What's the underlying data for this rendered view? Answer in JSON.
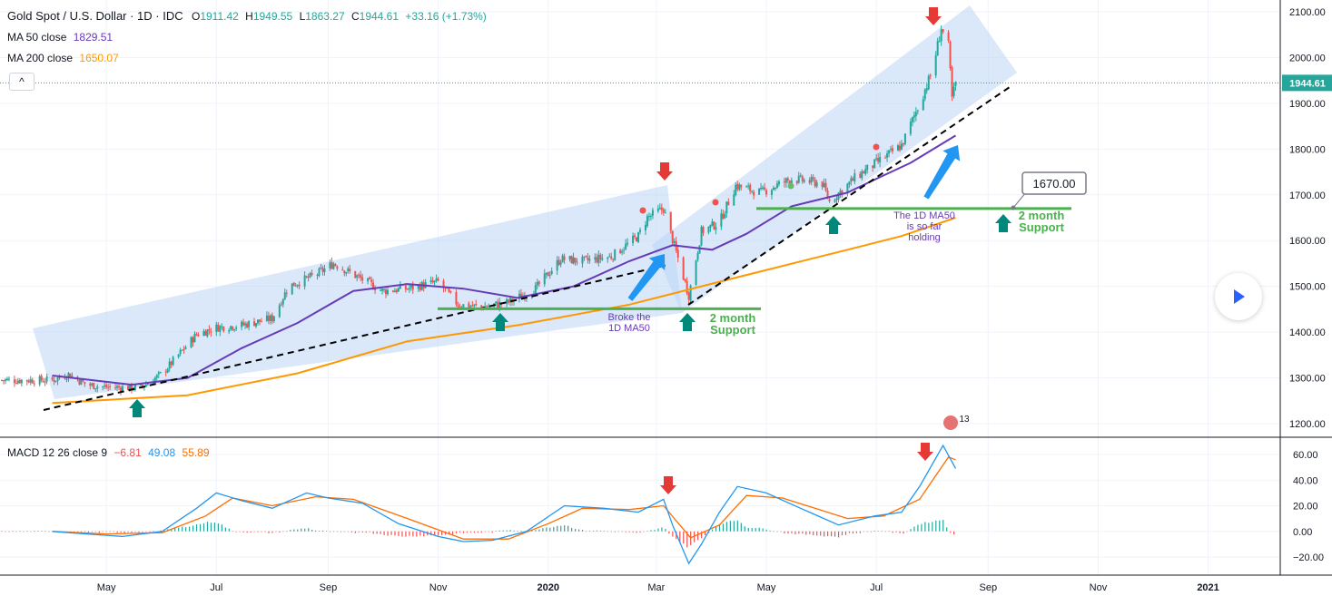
{
  "header": {
    "symbol": "Gold Spot / U.S. Dollar · 1D · IDC",
    "o_label": "O",
    "o_value": "1911.42",
    "h_label": "H",
    "h_value": "1949.55",
    "l_label": "L",
    "l_value": "1863.27",
    "c_label": "C",
    "c_value": "1944.61",
    "change": "+33.16 (+1.73%)",
    "ma50_label": "MA 50 close",
    "ma50_value": "1829.51",
    "ma200_label": "MA 200 close",
    "ma200_value": "1650.07",
    "collapse_glyph": "^"
  },
  "colors": {
    "up": "#26a69a",
    "down": "#ef5350",
    "ma50": "#673ab7",
    "ma200": "#ff9800",
    "macd": "#2196f3",
    "signal": "#ff6d00",
    "support": "#4caf50",
    "channel": "#bbd6f5",
    "arrow_red": "#e53935",
    "arrow_green": "#00897b",
    "arrow_blue": "#2196f3"
  },
  "chart_data": [
    {
      "type": "candlestick",
      "title": "Gold Spot / U.S. Dollar · 1D · IDC",
      "ylim": [
        1180,
        2120
      ],
      "y_ticks": [
        "2100.00",
        "2000.00",
        "1900.00",
        "1800.00",
        "1700.00",
        "1600.00",
        "1500.00",
        "1400.00",
        "1300.00",
        "1200.00"
      ],
      "x_ticks": [
        "May",
        "Jul",
        "Sep",
        "Nov",
        "2020",
        "Mar",
        "May",
        "Jul",
        "Sep",
        "Nov",
        "2021"
      ],
      "last_price": "1944.61",
      "price_path": [
        [
          "2019-04-01",
          1295
        ],
        [
          "2019-04-10",
          1308
        ],
        [
          "2019-04-20",
          1285
        ],
        [
          "2019-05-01",
          1280
        ],
        [
          "2019-05-20",
          1278
        ],
        [
          "2019-06-01",
          1310
        ],
        [
          "2019-06-20",
          1395
        ],
        [
          "2019-07-01",
          1410
        ],
        [
          "2019-07-15",
          1415
        ],
        [
          "2019-08-01",
          1430
        ],
        [
          "2019-08-10",
          1500
        ],
        [
          "2019-08-25",
          1525
        ],
        [
          "2019-09-04",
          1550
        ],
        [
          "2019-09-20",
          1515
        ],
        [
          "2019-10-01",
          1490
        ],
        [
          "2019-10-15",
          1495
        ],
        [
          "2019-11-01",
          1510
        ],
        [
          "2019-11-12",
          1460
        ],
        [
          "2019-11-25",
          1455
        ],
        [
          "2019-12-10",
          1465
        ],
        [
          "2019-12-25",
          1495
        ],
        [
          "2020-01-08",
          1560
        ],
        [
          "2020-01-20",
          1555
        ],
        [
          "2020-02-05",
          1565
        ],
        [
          "2020-02-20",
          1610
        ],
        [
          "2020-02-25",
          1650
        ],
        [
          "2020-03-05",
          1670
        ],
        [
          "2020-03-12",
          1575
        ],
        [
          "2020-03-19",
          1480
        ],
        [
          "2020-03-26",
          1620
        ],
        [
          "2020-04-05",
          1640
        ],
        [
          "2020-04-14",
          1720
        ],
        [
          "2020-04-28",
          1705
        ],
        [
          "2020-05-15",
          1735
        ],
        [
          "2020-06-01",
          1725
        ],
        [
          "2020-06-05",
          1685
        ],
        [
          "2020-06-20",
          1740
        ],
        [
          "2020-07-01",
          1770
        ],
        [
          "2020-07-15",
          1808
        ],
        [
          "2020-07-25",
          1900
        ],
        [
          "2020-08-01",
          1970
        ],
        [
          "2020-08-06",
          2065
        ],
        [
          "2020-08-10",
          2025
        ],
        [
          "2020-08-12",
          1910
        ],
        [
          "2020-08-14",
          1944.61
        ]
      ],
      "ma50": [
        [
          "2019-04-01",
          1305
        ],
        [
          "2019-05-15",
          1285
        ],
        [
          "2019-06-15",
          1300
        ],
        [
          "2019-07-15",
          1365
        ],
        [
          "2019-08-15",
          1420
        ],
        [
          "2019-09-15",
          1490
        ],
        [
          "2019-10-15",
          1505
        ],
        [
          "2019-11-15",
          1495
        ],
        [
          "2019-12-15",
          1475
        ],
        [
          "2020-01-15",
          1500
        ],
        [
          "2020-02-15",
          1555
        ],
        [
          "2020-03-10",
          1590
        ],
        [
          "2020-04-01",
          1580
        ],
        [
          "2020-04-20",
          1615
        ],
        [
          "2020-05-15",
          1675
        ],
        [
          "2020-06-15",
          1705
        ],
        [
          "2020-07-01",
          1735
        ],
        [
          "2020-07-20",
          1770
        ],
        [
          "2020-08-14",
          1829.51
        ]
      ],
      "ma200": [
        [
          "2019-04-01",
          1245
        ],
        [
          "2019-06-15",
          1262
        ],
        [
          "2019-08-15",
          1310
        ],
        [
          "2019-10-15",
          1380
        ],
        [
          "2019-12-15",
          1415
        ],
        [
          "2020-02-15",
          1460
        ],
        [
          "2020-04-15",
          1520
        ],
        [
          "2020-06-15",
          1580
        ],
        [
          "2020-07-15",
          1610
        ],
        [
          "2020-08-14",
          1650.07
        ]
      ],
      "annotations": {
        "price_box": "1670.00",
        "support_left": "2 month\nSupport",
        "support_right": "2 month\nSupport",
        "note_left": "Broke the\n1D MA50",
        "note_right": "The 1D MA50\nis so far\nholding",
        "event_badge": "13"
      }
    },
    {
      "type": "line",
      "title": "MACD 12 26 close 9",
      "hist_value": "−6.81",
      "macd_value": "49.08",
      "signal_value": "55.89",
      "ylim": [
        -32,
        72
      ],
      "y_ticks": [
        "60.00",
        "40.00",
        "20.00",
        "0.00",
        "−20.00"
      ],
      "macd": [
        [
          "2019-04-01",
          0
        ],
        [
          "2019-04-20",
          -2
        ],
        [
          "2019-05-10",
          -4
        ],
        [
          "2019-06-01",
          0
        ],
        [
          "2019-06-20",
          18
        ],
        [
          "2019-07-01",
          30
        ],
        [
          "2019-07-15",
          24
        ],
        [
          "2019-08-01",
          18
        ],
        [
          "2019-08-20",
          30
        ],
        [
          "2019-09-01",
          26
        ],
        [
          "2019-09-20",
          22
        ],
        [
          "2019-10-10",
          6
        ],
        [
          "2019-11-01",
          -4
        ],
        [
          "2019-11-15",
          -8
        ],
        [
          "2019-12-01",
          -7
        ],
        [
          "2019-12-20",
          0
        ],
        [
          "2020-01-10",
          20
        ],
        [
          "2020-02-01",
          18
        ],
        [
          "2020-02-20",
          15
        ],
        [
          "2020-03-05",
          25
        ],
        [
          "2020-03-10",
          5
        ],
        [
          "2020-03-19",
          -25
        ],
        [
          "2020-03-26",
          -10
        ],
        [
          "2020-04-05",
          15
        ],
        [
          "2020-04-15",
          35
        ],
        [
          "2020-05-01",
          30
        ],
        [
          "2020-05-20",
          18
        ],
        [
          "2020-06-10",
          5
        ],
        [
          "2020-06-30",
          12
        ],
        [
          "2020-07-15",
          15
        ],
        [
          "2020-07-25",
          35
        ],
        [
          "2020-08-07",
          67
        ],
        [
          "2020-08-14",
          49.08
        ]
      ],
      "signal": [
        [
          "2019-04-01",
          0
        ],
        [
          "2019-05-01",
          -2
        ],
        [
          "2019-06-01",
          -1
        ],
        [
          "2019-06-25",
          12
        ],
        [
          "2019-07-10",
          26
        ],
        [
          "2019-08-01",
          20
        ],
        [
          "2019-08-25",
          27
        ],
        [
          "2019-09-15",
          25
        ],
        [
          "2019-10-15",
          10
        ],
        [
          "2019-11-15",
          -6
        ],
        [
          "2019-12-10",
          -6
        ],
        [
          "2020-01-01",
          6
        ],
        [
          "2020-01-20",
          18
        ],
        [
          "2020-02-15",
          17
        ],
        [
          "2020-03-05",
          20
        ],
        [
          "2020-03-20",
          -5
        ],
        [
          "2020-04-05",
          5
        ],
        [
          "2020-04-20",
          28
        ],
        [
          "2020-05-10",
          26
        ],
        [
          "2020-06-15",
          10
        ],
        [
          "2020-07-05",
          12
        ],
        [
          "2020-07-25",
          25
        ],
        [
          "2020-08-10",
          58
        ],
        [
          "2020-08-14",
          55.89
        ]
      ]
    }
  ]
}
